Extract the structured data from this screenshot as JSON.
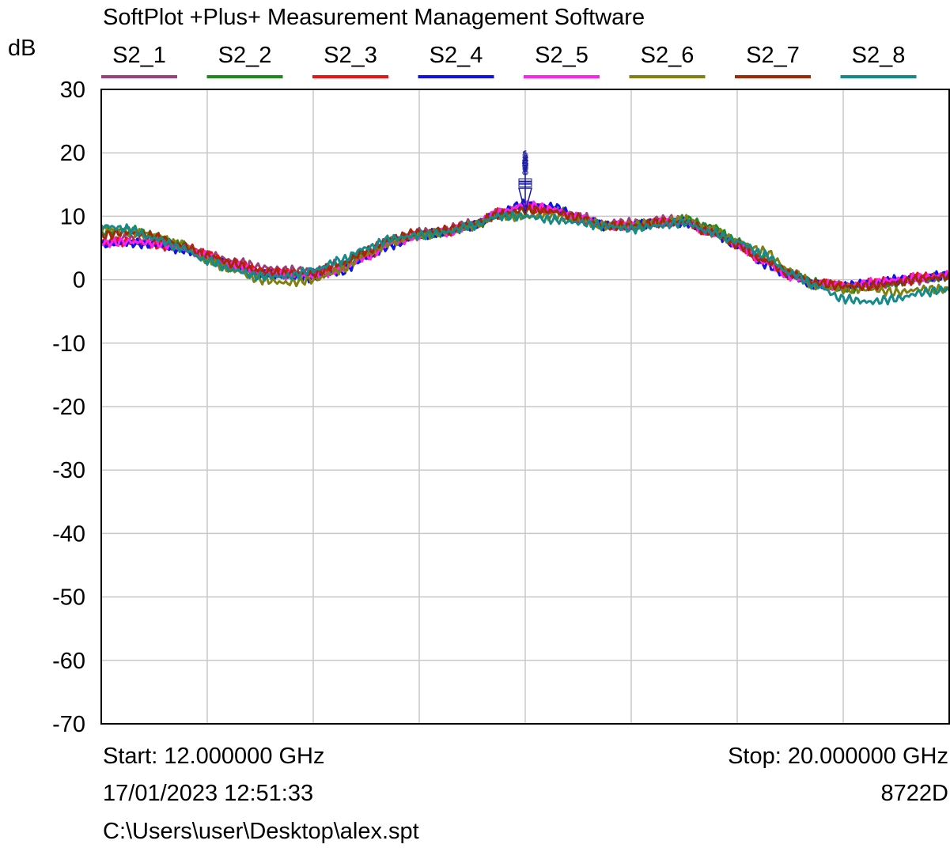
{
  "app_title": "SoftPlot +Plus+ Measurement Management Software",
  "y_unit": "dB",
  "footer": {
    "start": "Start: 12.000000 GHz",
    "stop": "Stop: 20.000000 GHz",
    "datetime": "17/01/2023 12:51:33",
    "instrument": "8722D",
    "file_path": "C:\\Users\\user\\Desktop\\alex.spt"
  },
  "marker": {
    "labels": [
      "1",
      "2",
      "3",
      "4",
      "5",
      "6",
      "7",
      "8"
    ],
    "x": 16.0,
    "color": "#1a1aa0"
  },
  "chart_data": {
    "type": "line",
    "title": "",
    "xlabel": "",
    "ylabel": "dB",
    "xlim": [
      12,
      20
    ],
    "ylim": [
      -70,
      30
    ],
    "yticks": [
      30,
      20,
      10,
      0,
      -10,
      -20,
      -30,
      -40,
      -50,
      -60,
      -70
    ],
    "xgrid": [
      13,
      14,
      15,
      16,
      17,
      18,
      19
    ],
    "grid": true,
    "legend_position": "top",
    "series": [
      {
        "name": "S2_1",
        "color": "#9b3f7b",
        "x": [
          12,
          12.25,
          12.5,
          12.75,
          13,
          13.25,
          13.5,
          13.75,
          14,
          14.25,
          14.5,
          14.75,
          15,
          15.25,
          15.5,
          15.75,
          16,
          16.25,
          16.5,
          16.75,
          17,
          17.25,
          17.5,
          17.75,
          18,
          18.25,
          18.5,
          18.75,
          19,
          19.25,
          19.5,
          19.75,
          20
        ],
        "y": [
          5.5,
          6.5,
          6,
          5,
          4,
          3,
          2,
          1.5,
          1.5,
          2.5,
          4.5,
          6.5,
          7.5,
          8,
          9,
          10.5,
          11.5,
          11,
          10,
          9,
          9,
          9.5,
          9.5,
          8,
          6,
          3,
          1,
          -0.5,
          -1,
          -1,
          -0.5,
          0,
          0.5
        ]
      },
      {
        "name": "S2_2",
        "color": "#1e8a1e",
        "x": [
          12,
          12.25,
          12.5,
          12.75,
          13,
          13.25,
          13.5,
          13.75,
          14,
          14.25,
          14.5,
          14.75,
          15,
          15.25,
          15.5,
          15.75,
          16,
          16.25,
          16.5,
          16.75,
          17,
          17.25,
          17.5,
          17.75,
          18,
          18.25,
          18.5,
          18.75,
          19,
          19.25,
          19.5,
          19.75,
          20
        ],
        "y": [
          7.5,
          8,
          7,
          5.5,
          3.5,
          2,
          1,
          0.8,
          0.8,
          2,
          4,
          6,
          7,
          7.5,
          8.5,
          10,
          11,
          11,
          10,
          8.5,
          8.5,
          9,
          9.5,
          8.5,
          6,
          3.5,
          1,
          -0.5,
          -1.5,
          -1,
          -0.5,
          0.3,
          0.5
        ]
      },
      {
        "name": "S2_3",
        "color": "#ee1111",
        "x": [
          12,
          12.25,
          12.5,
          12.75,
          13,
          13.25,
          13.5,
          13.75,
          14,
          14.25,
          14.5,
          14.75,
          15,
          15.25,
          15.5,
          15.75,
          16,
          16.25,
          16.5,
          16.75,
          17,
          17.25,
          17.5,
          17.75,
          18,
          18.25,
          18.5,
          18.75,
          19,
          19.25,
          19.5,
          19.75,
          20
        ],
        "y": [
          6,
          6,
          5.5,
          5,
          4,
          2.5,
          1.5,
          1,
          1,
          1.8,
          3.8,
          6,
          7,
          7.5,
          8.5,
          10.5,
          11.5,
          11,
          9.5,
          8.5,
          8.5,
          9,
          9,
          7.5,
          5.5,
          3,
          0.8,
          -0.5,
          -1,
          -0.5,
          0,
          0.5,
          0.8
        ]
      },
      {
        "name": "S2_4",
        "color": "#1010ee",
        "x": [
          12,
          12.25,
          12.5,
          12.75,
          13,
          13.25,
          13.5,
          13.75,
          14,
          14.25,
          14.5,
          14.75,
          15,
          15.25,
          15.5,
          15.75,
          16,
          16.25,
          16.5,
          16.75,
          17,
          17.25,
          17.5,
          17.75,
          18,
          18.25,
          18.5,
          18.75,
          19,
          19.25,
          19.5,
          19.75,
          20
        ],
        "y": [
          5.5,
          5.8,
          5.5,
          4.8,
          3.5,
          2,
          1,
          0.5,
          0.3,
          1.2,
          3.5,
          5.5,
          7,
          7.5,
          8.5,
          10.5,
          12,
          11.5,
          10,
          8.5,
          8.5,
          9,
          9,
          7.5,
          5.5,
          2.5,
          0.5,
          -0.8,
          -1,
          -0.5,
          0,
          0.3,
          0.8
        ]
      },
      {
        "name": "S2_5",
        "color": "#ff22ee",
        "x": [
          12,
          12.25,
          12.5,
          12.75,
          13,
          13.25,
          13.5,
          13.75,
          14,
          14.25,
          14.5,
          14.75,
          15,
          15.25,
          15.5,
          15.75,
          16,
          16.25,
          16.5,
          16.75,
          17,
          17.25,
          17.5,
          17.75,
          18,
          18.25,
          18.5,
          18.75,
          19,
          19.25,
          19.5,
          19.75,
          20
        ],
        "y": [
          5.8,
          6,
          5.8,
          5,
          3.8,
          2.3,
          1.2,
          0.8,
          0.6,
          1.5,
          3.7,
          5.8,
          7,
          7.5,
          8.5,
          10.5,
          11.8,
          11.2,
          9.8,
          8.5,
          8.5,
          9,
          9,
          7.5,
          5.5,
          2.8,
          0.6,
          -0.6,
          -1,
          -0.5,
          0,
          0.4,
          0.8
        ]
      },
      {
        "name": "S2_6",
        "color": "#808010",
        "x": [
          12,
          12.25,
          12.5,
          12.75,
          13,
          13.25,
          13.5,
          13.75,
          14,
          14.25,
          14.5,
          14.75,
          15,
          15.25,
          15.5,
          15.75,
          16,
          16.25,
          16.5,
          16.75,
          17,
          17.25,
          17.5,
          17.75,
          18,
          18.25,
          18.5,
          18.75,
          19,
          19.25,
          19.5,
          19.75,
          20
        ],
        "y": [
          8,
          7.5,
          7,
          5.5,
          3,
          1.5,
          0,
          -0.5,
          0,
          1.5,
          4,
          6,
          7,
          7.5,
          8.5,
          10,
          10,
          10,
          9.5,
          8.5,
          8.5,
          9,
          9.5,
          8,
          6,
          4.5,
          1.5,
          -1,
          -1.5,
          -1.5,
          -2,
          -1.5,
          -1.5
        ]
      },
      {
        "name": "S2_7",
        "color": "#a02a08",
        "x": [
          12,
          12.25,
          12.5,
          12.75,
          13,
          13.25,
          13.5,
          13.75,
          14,
          14.25,
          14.5,
          14.75,
          15,
          15.25,
          15.5,
          15.75,
          16,
          16.25,
          16.5,
          16.75,
          17,
          17.25,
          17.5,
          17.75,
          18,
          18.25,
          18.5,
          18.75,
          19,
          19.25,
          19.5,
          19.75,
          20
        ],
        "y": [
          7,
          7.5,
          6.8,
          5.5,
          3.8,
          2.5,
          1.3,
          1,
          1,
          2.5,
          4.5,
          6.5,
          7.5,
          7.8,
          8.8,
          10.2,
          11,
          10.8,
          9.8,
          8.5,
          8.5,
          9,
          9,
          7.5,
          5.5,
          3,
          1,
          -0.5,
          -1,
          -1,
          -0.5,
          0.2,
          0.5
        ]
      },
      {
        "name": "S2_8",
        "color": "#148a8a",
        "x": [
          12,
          12.25,
          12.5,
          12.75,
          13,
          13.25,
          13.5,
          13.75,
          14,
          14.25,
          14.5,
          14.75,
          15,
          15.25,
          15.5,
          15.75,
          16,
          16.25,
          16.5,
          16.75,
          17,
          17.25,
          17.5,
          17.75,
          18,
          18.25,
          18.5,
          18.75,
          19,
          19.25,
          19.5,
          19.75,
          20
        ],
        "y": [
          8.5,
          8,
          6.5,
          5,
          3,
          1.5,
          0.5,
          0.5,
          1.5,
          3,
          5,
          6.5,
          7,
          7.5,
          8.5,
          10,
          10,
          9.5,
          9,
          8.5,
          8,
          8.5,
          9,
          7.5,
          6,
          4,
          1,
          -1,
          -3,
          -3.5,
          -3,
          -2,
          -1.5
        ]
      }
    ]
  }
}
